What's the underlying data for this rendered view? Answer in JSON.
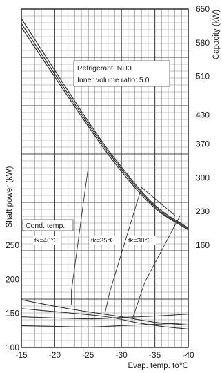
{
  "chart_data": {
    "type": "line",
    "title": "",
    "xlabel": "Evap. temp. to℃",
    "ylabel_left": "Shaft power (kW)",
    "ylabel_right": "Capacity (kW)",
    "x_ticks": [
      "-15",
      "-20",
      "-25",
      "-30",
      "-35",
      "-40"
    ],
    "x_tick_values": [
      -15,
      -20,
      -25,
      -30,
      -35,
      -40
    ],
    "xlim": [
      -15,
      -40
    ],
    "left_ticks": [
      "100",
      "150",
      "200",
      "250"
    ],
    "left_tick_values": [
      100,
      150,
      200,
      250
    ],
    "left_ylim": [
      100,
      250
    ],
    "right_ticks": [
      "650",
      "580",
      "510",
      "430",
      "370",
      "300",
      "230",
      "160"
    ],
    "right_tick_values": [
      650,
      580,
      510,
      430,
      370,
      300,
      230,
      160
    ],
    "right_ylim": [
      160,
      650
    ],
    "grid": true,
    "info_box": {
      "lines": [
        "Refrigerant: NH3",
        "Inner volume ratio: 5.0"
      ]
    },
    "legend": {
      "title": "Cond. temp.",
      "labels": [
        "tk=40℃",
        "tk=35℃",
        "tk=30℃"
      ]
    },
    "capacity_series": [
      {
        "x": [
          -15,
          -25,
          -30,
          -35,
          -40
        ],
        "y": [
          630,
          417,
          322,
          243,
          196
        ]
      },
      {
        "x": [
          -15,
          -25,
          -30,
          -35,
          -40
        ],
        "y": [
          620,
          412,
          318,
          240,
          194
        ]
      },
      {
        "x": [
          -15,
          -25,
          -30,
          -35,
          -40
        ],
        "y": [
          612,
          407,
          313,
          237,
          192
        ]
      }
    ],
    "shaft_power_series": [
      {
        "x": [
          -15,
          -22,
          -30,
          -35,
          -40
        ],
        "y": [
          170,
          157,
          145,
          137,
          133
        ]
      },
      {
        "x": [
          -15,
          -27,
          -32,
          -36,
          -40
        ],
        "y": [
          157,
          146,
          137,
          131,
          127
        ]
      },
      {
        "x": [
          -15,
          -20,
          -25,
          -30,
          -35,
          -40
        ],
        "y": [
          132,
          131,
          130,
          132,
          134,
          136
        ]
      },
      {
        "x": [
          -15,
          -25,
          -30,
          -35,
          -40
        ],
        "y": [
          145,
          142,
          144,
          146,
          149
        ]
      }
    ],
    "guide_lines": [
      [
        [
          -22.5,
          163
        ],
        [
          -22.5,
          183
        ],
        [
          -25,
          320
        ]
      ],
      [
        [
          -27.5,
          149
        ],
        [
          -28.2,
          180
        ],
        [
          -33,
          280
        ],
        [
          -38,
          222
        ]
      ],
      [
        [
          -31.5,
          138
        ],
        [
          -33.5,
          196
        ],
        [
          -38.8,
          222
        ]
      ]
    ]
  }
}
